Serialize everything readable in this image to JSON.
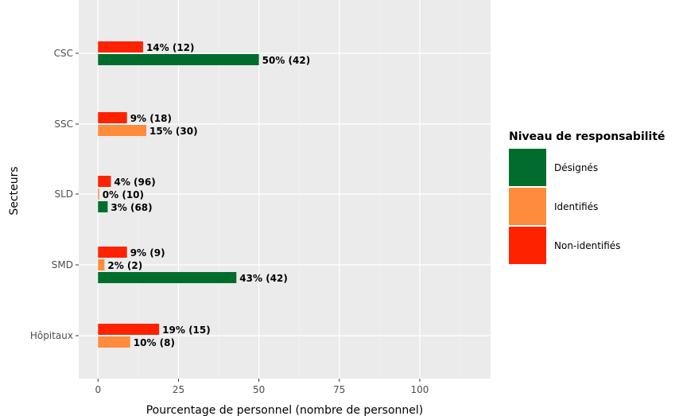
{
  "chart_data": {
    "type": "bar",
    "orientation": "horizontal",
    "xlabel": "Pourcentage de personnel (nombre de personnel)",
    "ylabel": "Secteurs",
    "xlim": [
      -6,
      122
    ],
    "xticks": [
      0,
      25,
      50,
      75,
      100
    ],
    "grid": true,
    "categories": [
      "CSC",
      "SSC",
      "SLD",
      "SMD",
      "Hôpitaux"
    ],
    "series": [
      {
        "name": "Non-identifiés",
        "color": "#ff2200",
        "values": [
          14,
          9,
          4,
          9,
          19
        ],
        "labels": [
          "14% (12)",
          "9% (18)",
          "4% (96)",
          "9% (9)",
          "19% (15)"
        ]
      },
      {
        "name": "Identifiés",
        "color": "#ff8c3c",
        "values": [
          null,
          15,
          0,
          2,
          10
        ],
        "labels": [
          null,
          "15% (30)",
          "0% (10)",
          "2% (2)",
          "10% (8)"
        ]
      },
      {
        "name": "Désignés",
        "color": "#006d2c",
        "values": [
          50,
          null,
          3,
          43,
          null
        ],
        "labels": [
          "50% (42)",
          null,
          "3% (68)",
          "43% (42)",
          null
        ]
      }
    ],
    "legend": {
      "title": "Niveau de responsabilité",
      "position": "right",
      "entries": [
        "Désignés",
        "Identifiés",
        "Non-identifiés"
      ]
    }
  }
}
